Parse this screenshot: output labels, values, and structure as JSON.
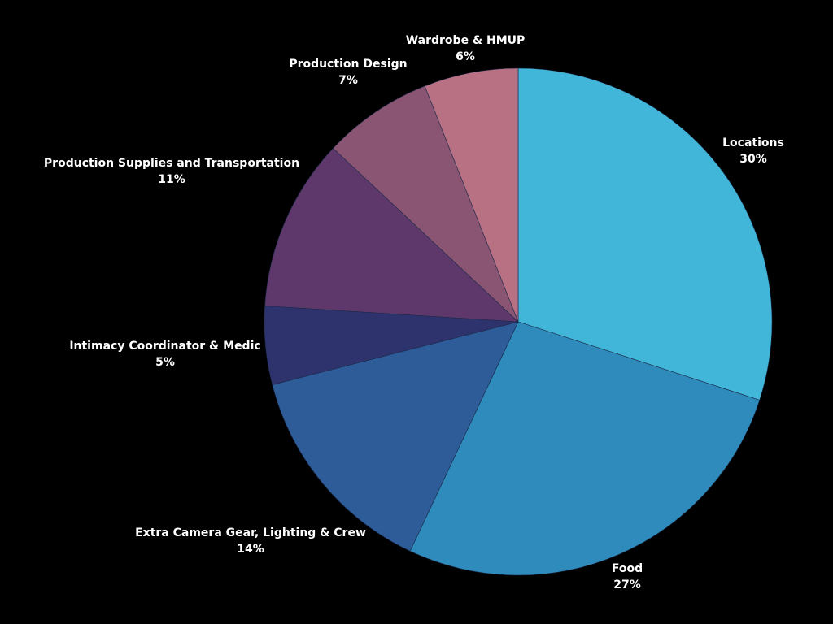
{
  "chart_data": {
    "type": "pie",
    "start_angle_deg": 0,
    "direction": "clockwise",
    "slices": [
      {
        "label": "Locations",
        "value": 30,
        "percent_label": "30%",
        "color": "#41b6d8"
      },
      {
        "label": "Food",
        "value": 27,
        "percent_label": "27%",
        "color": "#2e8bbb"
      },
      {
        "label": "Extra Camera Gear, Lighting & Crew",
        "value": 14,
        "percent_label": "14%",
        "color": "#2d5c98"
      },
      {
        "label": "Intimacy Coordinator & Medic",
        "value": 5,
        "percent_label": "5%",
        "color": "#2e336d"
      },
      {
        "label": "Production Supplies and Transportation",
        "value": 11,
        "percent_label": "11%",
        "color": "#5e386a"
      },
      {
        "label": "Production Design",
        "value": 7,
        "percent_label": "7%",
        "color": "#8a5573"
      },
      {
        "label": "Wardrobe & HMUP",
        "value": 6,
        "percent_label": "6%",
        "color": "#b87083"
      }
    ]
  }
}
